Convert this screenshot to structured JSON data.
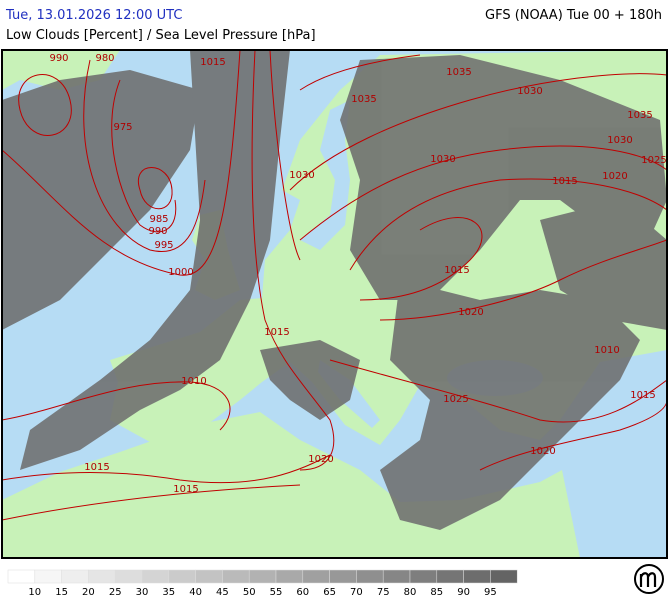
{
  "header": {
    "datetime": "Tue, 13.01.2026 12:00 UTC",
    "model": "GFS (NOAA) Tue 00 + 180h",
    "subtitle": "Low Clouds [Percent] / Sea Level Pressure [hPa]"
  },
  "isobar_labels": [
    "990",
    "980",
    "1015",
    "1035",
    "1030",
    "1035",
    "975",
    "1035",
    "1030",
    "1030",
    "1025",
    "1030",
    "1020",
    "1015",
    "985",
    "990",
    "995",
    "1000",
    "1015",
    "1020",
    "1015",
    "1010",
    "1010",
    "1025",
    "1015",
    "1020",
    "1020",
    "1015",
    "1015"
  ],
  "legend": {
    "values": [
      10,
      15,
      20,
      25,
      30,
      35,
      40,
      45,
      50,
      55,
      60,
      65,
      70,
      75,
      80,
      85,
      90,
      95
    ]
  }
}
